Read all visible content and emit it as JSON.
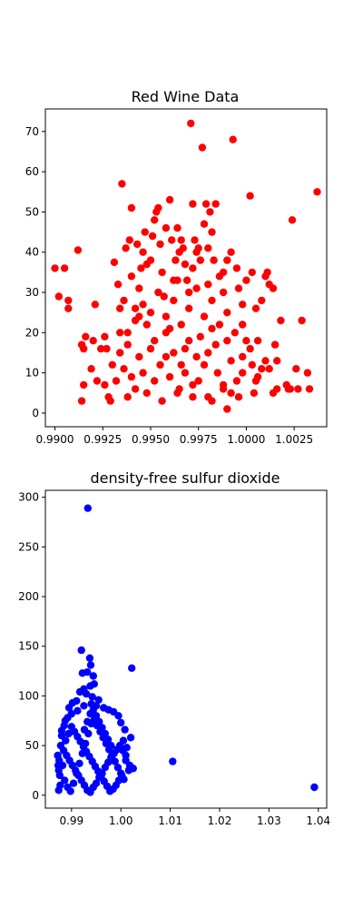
{
  "chart_data": [
    {
      "type": "scatter",
      "title": "Red Wine Data",
      "xlabel": "",
      "ylabel": "",
      "xlim": [
        0.9895,
        1.0042
      ],
      "ylim": [
        -3.4,
        75.6
      ],
      "xticks": [
        0.99,
        0.9925,
        0.995,
        0.9975,
        1.0,
        1.0025
      ],
      "xtick_labels": [
        "0.9900",
        "0.9925",
        "0.9950",
        "0.9975",
        "1.0000",
        "1.0025"
      ],
      "yticks": [
        0,
        10,
        20,
        30,
        40,
        50,
        60,
        70
      ],
      "ytick_labels": [
        "0",
        "10",
        "20",
        "30",
        "40",
        "50",
        "60",
        "70"
      ],
      "color": "#ff0000",
      "grid": false,
      "points": [
        [
          0.99,
          36
        ],
        [
          0.9905,
          36
        ],
        [
          0.9907,
          28
        ],
        [
          0.9907,
          26
        ],
        [
          0.9902,
          29
        ],
        [
          0.9912,
          40.5
        ],
        [
          0.9914,
          17
        ],
        [
          0.9914,
          3
        ],
        [
          0.9915,
          7
        ],
        [
          0.9916,
          19
        ],
        [
          0.9915,
          16
        ],
        [
          0.9919,
          11
        ],
        [
          0.992,
          18
        ],
        [
          0.9921,
          27
        ],
        [
          0.9922,
          8
        ],
        [
          0.9924,
          16
        ],
        [
          0.9926,
          7
        ],
        [
          0.9926,
          19
        ],
        [
          0.9927,
          16
        ],
        [
          0.9928,
          4
        ],
        [
          0.9929,
          3
        ],
        [
          0.9931,
          37.5
        ],
        [
          0.9933,
          32
        ],
        [
          0.9935,
          57
        ],
        [
          0.9934,
          26
        ],
        [
          0.9936,
          28
        ],
        [
          0.9937,
          41
        ],
        [
          0.9938,
          20
        ],
        [
          0.9939,
          43
        ],
        [
          0.994,
          51
        ],
        [
          0.994,
          34
        ],
        [
          0.9942,
          26
        ],
        [
          0.9944,
          24
        ],
        [
          0.9943,
          42
        ],
        [
          0.9945,
          36
        ],
        [
          0.9946,
          40
        ],
        [
          0.9947,
          45
        ],
        [
          0.9948,
          37
        ],
        [
          0.995,
          38
        ],
        [
          0.9951,
          44
        ],
        [
          0.9952,
          48
        ],
        [
          0.9953,
          50
        ],
        [
          0.9954,
          51
        ],
        [
          0.9955,
          42
        ],
        [
          0.9957,
          29
        ],
        [
          0.9958,
          46
        ],
        [
          0.996,
          53
        ],
        [
          0.9961,
          43
        ],
        [
          0.9962,
          33
        ],
        [
          0.9963,
          38
        ],
        [
          0.9964,
          46
        ],
        [
          0.9965,
          40
        ],
        [
          0.9966,
          43
        ],
        [
          0.9967,
          41
        ],
        [
          0.9968,
          37
        ],
        [
          0.9969,
          33
        ],
        [
          0.997,
          30
        ],
        [
          0.9971,
          72
        ],
        [
          0.9972,
          52
        ],
        [
          0.9973,
          43
        ],
        [
          0.9974,
          40
        ],
        [
          0.9975,
          41
        ],
        [
          0.9976,
          38
        ],
        [
          0.9977,
          66
        ],
        [
          0.9978,
          47
        ],
        [
          0.9979,
          52
        ],
        [
          0.998,
          41
        ],
        [
          0.9981,
          50
        ],
        [
          0.9982,
          45
        ],
        [
          0.9983,
          38
        ],
        [
          0.9984,
          52
        ],
        [
          0.9986,
          34
        ],
        [
          0.9988,
          35
        ],
        [
          0.999,
          38
        ],
        [
          0.9992,
          40
        ],
        [
          0.9993,
          68
        ],
        [
          0.9995,
          36
        ],
        [
          0.9996,
          31
        ],
        [
          0.9998,
          27
        ],
        [
          1.0,
          33
        ],
        [
          1.0002,
          54
        ],
        [
          1.0003,
          35
        ],
        [
          1.0005,
          26
        ],
        [
          1.0008,
          28
        ],
        [
          1.001,
          34
        ],
        [
          1.0011,
          35
        ],
        [
          1.0012,
          32
        ],
        [
          1.0014,
          31
        ],
        [
          1.0015,
          17
        ],
        [
          1.0016,
          13
        ],
        [
          1.0018,
          23
        ],
        [
          1.0021,
          7
        ],
        [
          1.0022,
          6
        ],
        [
          1.0023,
          6
        ],
        [
          1.0024,
          48
        ],
        [
          1.0026,
          11
        ],
        [
          1.0027,
          6
        ],
        [
          1.0029,
          23
        ],
        [
          1.0032,
          10
        ],
        [
          1.0033,
          6
        ],
        [
          1.0037,
          55
        ],
        [
          1.0012,
          11
        ],
        [
          1.0014,
          5
        ],
        [
          1.0016,
          6
        ],
        [
          1.0008,
          11
        ],
        [
          1.0005,
          8
        ],
        [
          1.0003,
          12
        ],
        [
          1.0,
          18
        ],
        [
          0.9998,
          14
        ],
        [
          0.9995,
          8
        ],
        [
          0.9992,
          5
        ],
        [
          0.999,
          1
        ],
        [
          0.9988,
          7
        ],
        [
          0.9985,
          10
        ],
        [
          0.9982,
          3
        ],
        [
          0.998,
          15
        ],
        [
          0.9978,
          12
        ],
        [
          0.9975,
          8
        ],
        [
          0.9972,
          4
        ],
        [
          0.997,
          18
        ],
        [
          0.9968,
          10
        ],
        [
          0.9965,
          6
        ],
        [
          0.9962,
          15
        ],
        [
          0.996,
          9
        ],
        [
          0.9958,
          20
        ],
        [
          0.9955,
          12
        ],
        [
          0.9952,
          8
        ],
        [
          0.995,
          16
        ],
        [
          0.9948,
          5
        ],
        [
          0.9946,
          10
        ],
        [
          0.9944,
          14
        ],
        [
          0.9942,
          6
        ],
        [
          0.994,
          9
        ],
        [
          0.9938,
          4
        ],
        [
          0.9936,
          11
        ],
        [
          0.9934,
          15
        ],
        [
          0.9932,
          8
        ],
        [
          0.993,
          12
        ],
        [
          0.9934,
          20
        ],
        [
          0.9938,
          17
        ],
        [
          0.9942,
          23
        ],
        [
          0.9946,
          27
        ],
        [
          0.995,
          25
        ],
        [
          0.9954,
          30
        ],
        [
          0.9958,
          24
        ],
        [
          0.9962,
          28
        ],
        [
          0.9966,
          22
        ],
        [
          0.997,
          26
        ],
        [
          0.9974,
          31
        ],
        [
          0.9978,
          24
        ],
        [
          0.9982,
          28
        ],
        [
          0.9986,
          22
        ],
        [
          0.999,
          25
        ],
        [
          0.9994,
          20
        ],
        [
          0.9998,
          22
        ],
        [
          1.0002,
          16
        ],
        [
          1.0006,
          18
        ],
        [
          1.001,
          13
        ],
        [
          0.9956,
          35
        ],
        [
          0.9964,
          33
        ],
        [
          0.9972,
          36
        ],
        [
          0.998,
          32
        ],
        [
          0.9988,
          30
        ],
        [
          0.9944,
          31
        ],
        [
          0.9952,
          18
        ],
        [
          0.996,
          21
        ],
        [
          0.9968,
          16
        ],
        [
          0.9976,
          19
        ],
        [
          0.9984,
          17
        ],
        [
          0.9992,
          13
        ],
        [
          0.9956,
          3
        ],
        [
          0.9964,
          5
        ],
        [
          0.9972,
          7
        ],
        [
          0.998,
          4
        ],
        [
          0.9988,
          6
        ],
        [
          0.9996,
          4
        ],
        [
          1.0004,
          5
        ],
        [
          0.9948,
          22
        ],
        [
          0.9958,
          14
        ],
        [
          0.9966,
          12
        ],
        [
          0.9974,
          14
        ],
        [
          0.9982,
          21
        ],
        [
          0.999,
          18
        ],
        [
          0.9998,
          10
        ],
        [
          1.0006,
          9
        ]
      ]
    },
    {
      "type": "scatter",
      "title": "density-free sulfur dioxide",
      "xlabel": "",
      "ylabel": "",
      "xlim": [
        0.9847,
        1.0417
      ],
      "ylim": [
        -13,
        307
      ],
      "xticks": [
        0.99,
        1.0,
        1.01,
        1.02,
        1.03,
        1.04
      ],
      "xtick_labels": [
        "0.99",
        "1.00",
        "1.01",
        "1.02",
        "1.03",
        "1.04"
      ],
      "yticks": [
        0,
        50,
        100,
        150,
        200,
        250,
        300
      ],
      "ytick_labels": [
        "0",
        "50",
        "100",
        "150",
        "200",
        "250",
        "300"
      ],
      "color": "#0000ff",
      "grid": false,
      "points": [
        [
          0.9933,
          289
        ],
        [
          0.992,
          146
        ],
        [
          0.9937,
          138
        ],
        [
          0.9939,
          131
        ],
        [
          0.9932,
          124
        ],
        [
          1.0022,
          128
        ],
        [
          0.9922,
          123
        ],
        [
          0.9944,
          120
        ],
        [
          0.9946,
          112
        ],
        [
          0.9938,
          110
        ],
        [
          0.9925,
          107
        ],
        [
          0.9917,
          104
        ],
        [
          0.993,
          102
        ],
        [
          0.9942,
          99
        ],
        [
          0.9955,
          96
        ],
        [
          0.991,
          95
        ],
        [
          0.9902,
          93
        ],
        [
          0.9895,
          88
        ],
        [
          0.9887,
          75
        ],
        [
          0.988,
          65
        ],
        [
          0.9872,
          40
        ],
        [
          0.9875,
          35
        ],
        [
          0.9873,
          30
        ],
        [
          0.9874,
          25
        ],
        [
          0.9876,
          20
        ],
        [
          0.9877,
          10
        ],
        [
          0.9874,
          5
        ],
        [
          1.0105,
          34
        ],
        [
          1.0392,
          8
        ],
        [
          1.0025,
          27
        ],
        [
          1.0018,
          30
        ],
        [
          1.001,
          40
        ],
        [
          1.0005,
          55
        ],
        [
          1.002,
          58
        ],
        [
          1.0012,
          48
        ],
        [
          1.0008,
          66
        ],
        [
          1.0,
          73
        ],
        [
          0.9995,
          80
        ],
        [
          0.9985,
          84
        ],
        [
          0.9975,
          86
        ],
        [
          0.9965,
          88
        ],
        [
          0.995,
          90
        ],
        [
          0.994,
          92
        ],
        [
          0.9925,
          90
        ],
        [
          0.9912,
          85
        ],
        [
          0.99,
          82
        ],
        [
          0.9892,
          78
        ],
        [
          0.9885,
          70
        ],
        [
          0.988,
          60
        ],
        [
          0.9878,
          50
        ],
        [
          0.9884,
          45
        ],
        [
          0.989,
          40
        ],
        [
          0.9896,
          35
        ],
        [
          0.9902,
          30
        ],
        [
          0.9908,
          25
        ],
        [
          0.9914,
          20
        ],
        [
          0.992,
          15
        ],
        [
          0.9926,
          10
        ],
        [
          0.9932,
          5
        ],
        [
          0.9938,
          3
        ],
        [
          0.9944,
          8
        ],
        [
          0.995,
          12
        ],
        [
          0.9956,
          18
        ],
        [
          0.9962,
          22
        ],
        [
          0.9968,
          28
        ],
        [
          0.9974,
          33
        ],
        [
          0.998,
          38
        ],
        [
          0.9986,
          42
        ],
        [
          0.9992,
          46
        ],
        [
          0.9998,
          50
        ],
        [
          1.0004,
          45
        ],
        [
          1.001,
          35
        ],
        [
          1.0016,
          25
        ],
        [
          1.0002,
          20
        ],
        [
          0.9996,
          15
        ],
        [
          0.999,
          10
        ],
        [
          0.9984,
          6
        ],
        [
          0.9978,
          4
        ],
        [
          0.9972,
          9
        ],
        [
          0.9966,
          14
        ],
        [
          0.996,
          19
        ],
        [
          0.9954,
          24
        ],
        [
          0.9948,
          29
        ],
        [
          0.9942,
          34
        ],
        [
          0.9936,
          39
        ],
        [
          0.993,
          44
        ],
        [
          0.9924,
          49
        ],
        [
          0.9918,
          54
        ],
        [
          0.9912,
          59
        ],
        [
          0.9906,
          64
        ],
        [
          0.99,
          69
        ],
        [
          0.9894,
          62
        ],
        [
          0.9888,
          55
        ],
        [
          0.9882,
          30
        ],
        [
          0.9886,
          15
        ],
        [
          0.9892,
          8
        ],
        [
          0.9898,
          4
        ],
        [
          0.9904,
          12
        ],
        [
          0.991,
          22
        ],
        [
          0.9916,
          32
        ],
        [
          0.9922,
          42
        ],
        [
          0.9928,
          52
        ],
        [
          0.9934,
          62
        ],
        [
          0.994,
          72
        ],
        [
          0.9946,
          76
        ],
        [
          0.9952,
          70
        ],
        [
          0.9958,
          64
        ],
        [
          0.9964,
          58
        ],
        [
          0.997,
          52
        ],
        [
          0.9976,
          46
        ],
        [
          0.9982,
          40
        ],
        [
          0.9988,
          34
        ],
        [
          0.9994,
          28
        ],
        [
          1.0,
          22
        ],
        [
          1.0006,
          16
        ],
        [
          0.9926,
          66
        ],
        [
          0.9932,
          74
        ],
        [
          0.9938,
          82
        ],
        [
          0.9944,
          86
        ],
        [
          0.995,
          80
        ],
        [
          0.9956,
          74
        ],
        [
          0.9962,
          68
        ],
        [
          0.9968,
          62
        ],
        [
          0.9974,
          56
        ],
        [
          0.998,
          50
        ]
      ]
    }
  ]
}
